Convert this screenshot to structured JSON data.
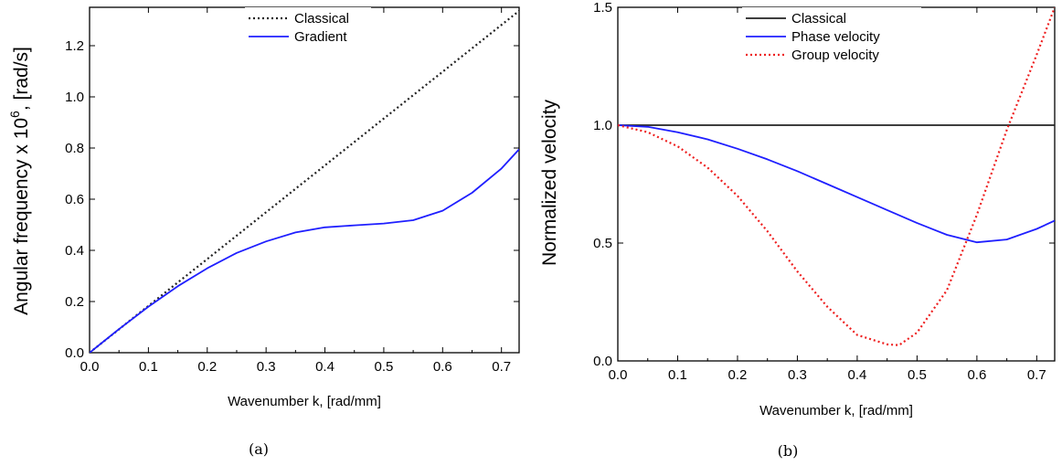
{
  "chart_data": [
    {
      "type": "line",
      "caption": "(a)",
      "xlabel": "Wavenumber k, [rad/mm]",
      "ylabel_main": "Angular frequency x 10",
      "ylabel_exp": "6",
      "ylabel_unit": ", [rad/s]",
      "xlim": [
        0.0,
        0.73
      ],
      "ylim": [
        0.0,
        1.35
      ],
      "xticks": [
        "0.0",
        "0.1",
        "0.2",
        "0.3",
        "0.4",
        "0.5",
        "0.6",
        "0.7"
      ],
      "yticks": [
        "0.0",
        "0.2",
        "0.4",
        "0.6",
        "0.8",
        "1.0",
        "1.2"
      ],
      "legend_position": "top-right",
      "series": [
        {
          "name": "Classical",
          "color": "#222222",
          "dash": "dotted",
          "x": [
            0.0,
            0.73
          ],
          "y": [
            0.0,
            1.336
          ]
        },
        {
          "name": "Gradient",
          "color": "#1f1fff",
          "dash": "solid",
          "x": [
            0.0,
            0.05,
            0.1,
            0.15,
            0.2,
            0.25,
            0.3,
            0.35,
            0.4,
            0.45,
            0.5,
            0.55,
            0.6,
            0.65,
            0.7,
            0.73
          ],
          "y": [
            0.0,
            0.092,
            0.18,
            0.26,
            0.33,
            0.39,
            0.435,
            0.47,
            0.49,
            0.498,
            0.505,
            0.518,
            0.555,
            0.625,
            0.72,
            0.795
          ]
        }
      ]
    },
    {
      "type": "line",
      "caption": "(b)",
      "xlabel": "Wavenumber k, [rad/mm]",
      "ylabel": "Normalized velocity",
      "xlim": [
        0.0,
        0.73
      ],
      "ylim": [
        0.0,
        1.5
      ],
      "xticks": [
        "0.0",
        "0.1",
        "0.2",
        "0.3",
        "0.4",
        "0.5",
        "0.6",
        "0.7"
      ],
      "yticks": [
        "0.0",
        "0.5",
        "1.0",
        "1.5"
      ],
      "legend_position": "top-right",
      "series": [
        {
          "name": "Classical",
          "color": "#222222",
          "dash": "solid",
          "x": [
            0.0,
            0.73
          ],
          "y": [
            1.0,
            1.0
          ]
        },
        {
          "name": "Phase velocity",
          "color": "#1f1fff",
          "dash": "solid",
          "x": [
            0.0,
            0.05,
            0.1,
            0.15,
            0.2,
            0.25,
            0.3,
            0.35,
            0.4,
            0.45,
            0.5,
            0.55,
            0.6,
            0.65,
            0.7,
            0.73
          ],
          "y": [
            1.0,
            0.993,
            0.97,
            0.94,
            0.9,
            0.855,
            0.805,
            0.75,
            0.695,
            0.64,
            0.585,
            0.535,
            0.503,
            0.515,
            0.56,
            0.595
          ]
        },
        {
          "name": "Group velocity",
          "color": "#ee1f1f",
          "dash": "dotted",
          "x": [
            0.0,
            0.05,
            0.1,
            0.15,
            0.2,
            0.25,
            0.3,
            0.35,
            0.4,
            0.45,
            0.47,
            0.5,
            0.55,
            0.6,
            0.65,
            0.7,
            0.73
          ],
          "y": [
            1.0,
            0.97,
            0.91,
            0.82,
            0.7,
            0.55,
            0.38,
            0.23,
            0.11,
            0.07,
            0.067,
            0.12,
            0.3,
            0.62,
            0.98,
            1.3,
            1.5
          ]
        }
      ]
    }
  ]
}
